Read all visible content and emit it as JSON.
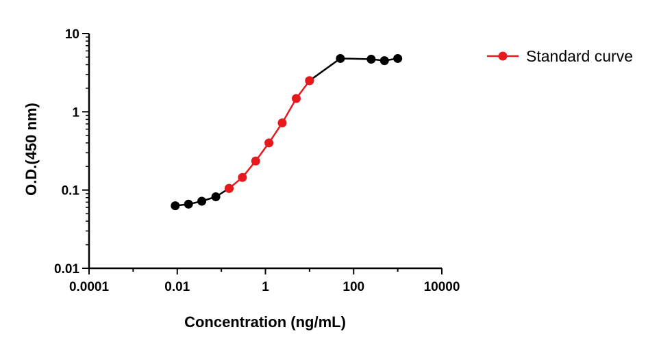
{
  "chart_data": {
    "type": "scatter",
    "title": "",
    "xlabel": "Concentration (ng/mL)",
    "ylabel": "O.D.(450 nm)",
    "xscale": "log",
    "yscale": "log",
    "xlim": [
      0.0001,
      10000
    ],
    "ylim": [
      0.01,
      10
    ],
    "x_ticks": [
      0.0001,
      0.01,
      1,
      100,
      10000
    ],
    "x_tick_labels": [
      "0.0001",
      "0.01",
      "1",
      "100",
      "10000"
    ],
    "y_ticks": [
      0.01,
      0.1,
      1,
      10
    ],
    "y_tick_labels": [
      "0.01",
      "0.1",
      "1",
      "10"
    ],
    "grid": false,
    "legend_position": "top-right",
    "series": [
      {
        "name": "Standard curve",
        "color": "#e8191c",
        "x": [
          0.15,
          0.3,
          0.6,
          1.2,
          2.4,
          5,
          10
        ],
        "y": [
          0.105,
          0.145,
          0.235,
          0.4,
          0.72,
          1.48,
          2.5
        ]
      },
      {
        "name": "",
        "color": "#000000",
        "x": [
          0.009,
          0.018,
          0.036,
          0.075,
          0.15
        ],
        "y": [
          0.063,
          0.066,
          0.072,
          0.082,
          0.105
        ]
      },
      {
        "name": "",
        "color": "#000000",
        "x": [
          10,
          50,
          250,
          500,
          1000
        ],
        "y": [
          2.5,
          4.8,
          4.7,
          4.5,
          4.8
        ]
      }
    ]
  }
}
